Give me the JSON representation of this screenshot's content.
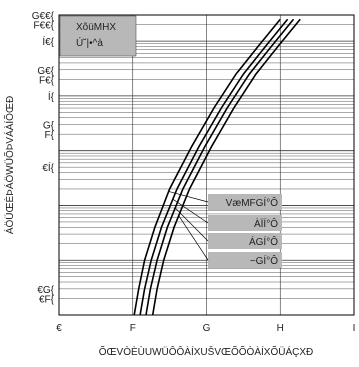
{
  "chart_data": {
    "type": "line",
    "xlabel": "ÕŒVÒÈÙUWÜÔÔÀÍXUŠVŒÕÕÒÀÍXÕÜÁÇXÐ",
    "ylabel": "ÁÖÜŒÈÞÁÖWÜÕÞVÁÀÍÕŒÐ",
    "x_ticks": [
      "€",
      "F",
      "G",
      "H",
      "I"
    ],
    "y_ticks": [
      "G€€{",
      "F€€{",
      "Í€{",
      "G€{",
      "F€{",
      "Í{",
      "G{",
      "F{",
      "€Í{",
      "€G{",
      "€F{"
    ],
    "xlim": [
      0,
      4
    ],
    "ylim": [
      0.001,
      300
    ],
    "yscale": "log",
    "grid": true,
    "legend": {
      "title_line1": "XõüMHX",
      "title_line2": "Ú˘|•^à",
      "position": "top-left"
    },
    "series": [
      {
        "name": "VæMFGÍ°Ô",
        "x": [
          1.02,
          1.08,
          1.16,
          1.3,
          1.5,
          1.8,
          2.1,
          2.4,
          2.7,
          3.0
        ],
        "y": [
          0.001,
          0.003,
          0.01,
          0.04,
          0.2,
          1.2,
          6,
          25,
          80,
          250
        ]
      },
      {
        "name": "ÀÏÍ°Ô",
        "x": [
          1.1,
          1.16,
          1.25,
          1.39,
          1.6,
          1.9,
          2.2,
          2.5,
          2.8,
          3.1
        ],
        "y": [
          0.001,
          0.003,
          0.01,
          0.04,
          0.2,
          1.2,
          6,
          25,
          80,
          250
        ]
      },
      {
        "name": "ÁGÍ°Ô",
        "x": [
          1.18,
          1.24,
          1.33,
          1.47,
          1.68,
          1.98,
          2.28,
          2.58,
          2.88,
          3.18
        ],
        "y": [
          0.001,
          0.003,
          0.01,
          0.04,
          0.2,
          1.2,
          6,
          25,
          80,
          250
        ]
      },
      {
        "name": "−GÍ°Ô",
        "x": [
          1.27,
          1.33,
          1.42,
          1.56,
          1.77,
          2.07,
          2.37,
          2.67,
          2.97,
          3.27
        ],
        "y": [
          0.001,
          0.003,
          0.01,
          0.04,
          0.2,
          1.2,
          6,
          25,
          80,
          250
        ]
      }
    ]
  }
}
